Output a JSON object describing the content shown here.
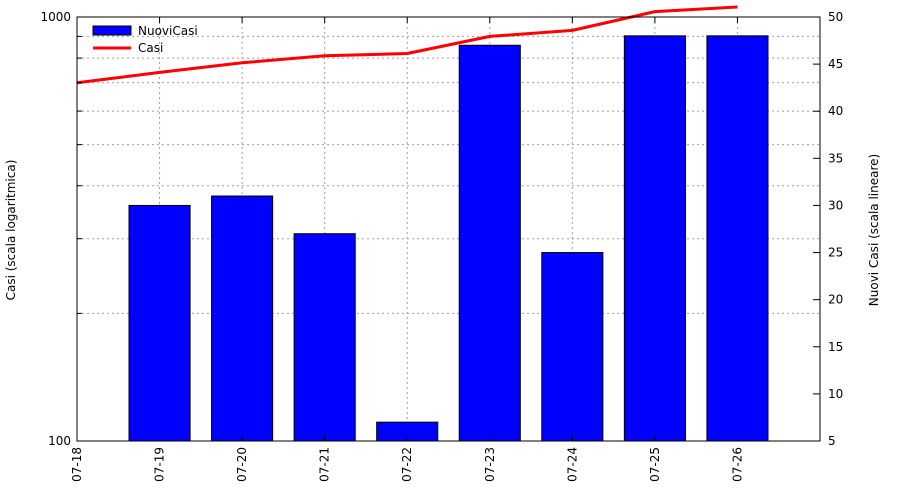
{
  "chart_data": {
    "type": "bar",
    "categories": [
      "07-18",
      "07-19",
      "07-20",
      "07-21",
      "07-22",
      "07-23",
      "07-24",
      "07-25",
      "07-26"
    ],
    "series": [
      {
        "name": "NuoviCasi",
        "type": "bar",
        "axis": "right",
        "color": "#0000ff",
        "values": [
          null,
          30,
          31,
          27,
          7,
          47,
          25,
          48,
          48
        ]
      },
      {
        "name": "Casi",
        "type": "line",
        "axis": "left",
        "color": "#ff0000",
        "values": [
          700,
          740,
          780,
          810,
          820,
          900,
          930,
          1030,
          1140
        ]
      }
    ],
    "y_left": {
      "label": "Casi (scala logaritmica)",
      "scale": "log",
      "range": [
        100,
        1000
      ],
      "tick_labels": [
        "100",
        "1000"
      ]
    },
    "y_right": {
      "label": "Nuovi Casi (scala lineare)",
      "scale": "linear",
      "range": [
        5,
        50
      ],
      "ticks": [
        5,
        10,
        15,
        20,
        25,
        30,
        35,
        40,
        45,
        50
      ]
    },
    "grid": true,
    "legend_position": "top-left"
  }
}
